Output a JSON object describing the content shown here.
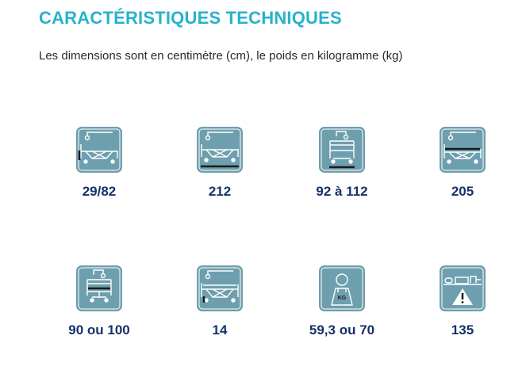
{
  "heading": {
    "title": "CARACTÉRISTIQUES TECHNIQUES",
    "subtitle": "Les dimensions sont en centimètre (cm), le poids en kilogramme (kg)"
  },
  "specs": [
    {
      "icon": "bed-height-icon",
      "value": "29/82"
    },
    {
      "icon": "bed-length-icon",
      "value": "212"
    },
    {
      "icon": "bed-overall-width-icon",
      "value": "92 à 112"
    },
    {
      "icon": "bed-mattress-length-icon",
      "value": "205"
    },
    {
      "icon": "bed-mattress-width-icon",
      "value": "90 ou 100"
    },
    {
      "icon": "bed-side-rail-height-icon",
      "value": "14"
    },
    {
      "icon": "bed-weight-icon",
      "value": "59,3 ou 70"
    },
    {
      "icon": "safe-working-load-icon",
      "value": "135"
    }
  ],
  "colors": {
    "title": "#27b2cb",
    "tile": "#6e9fae",
    "value": "#16316a"
  }
}
